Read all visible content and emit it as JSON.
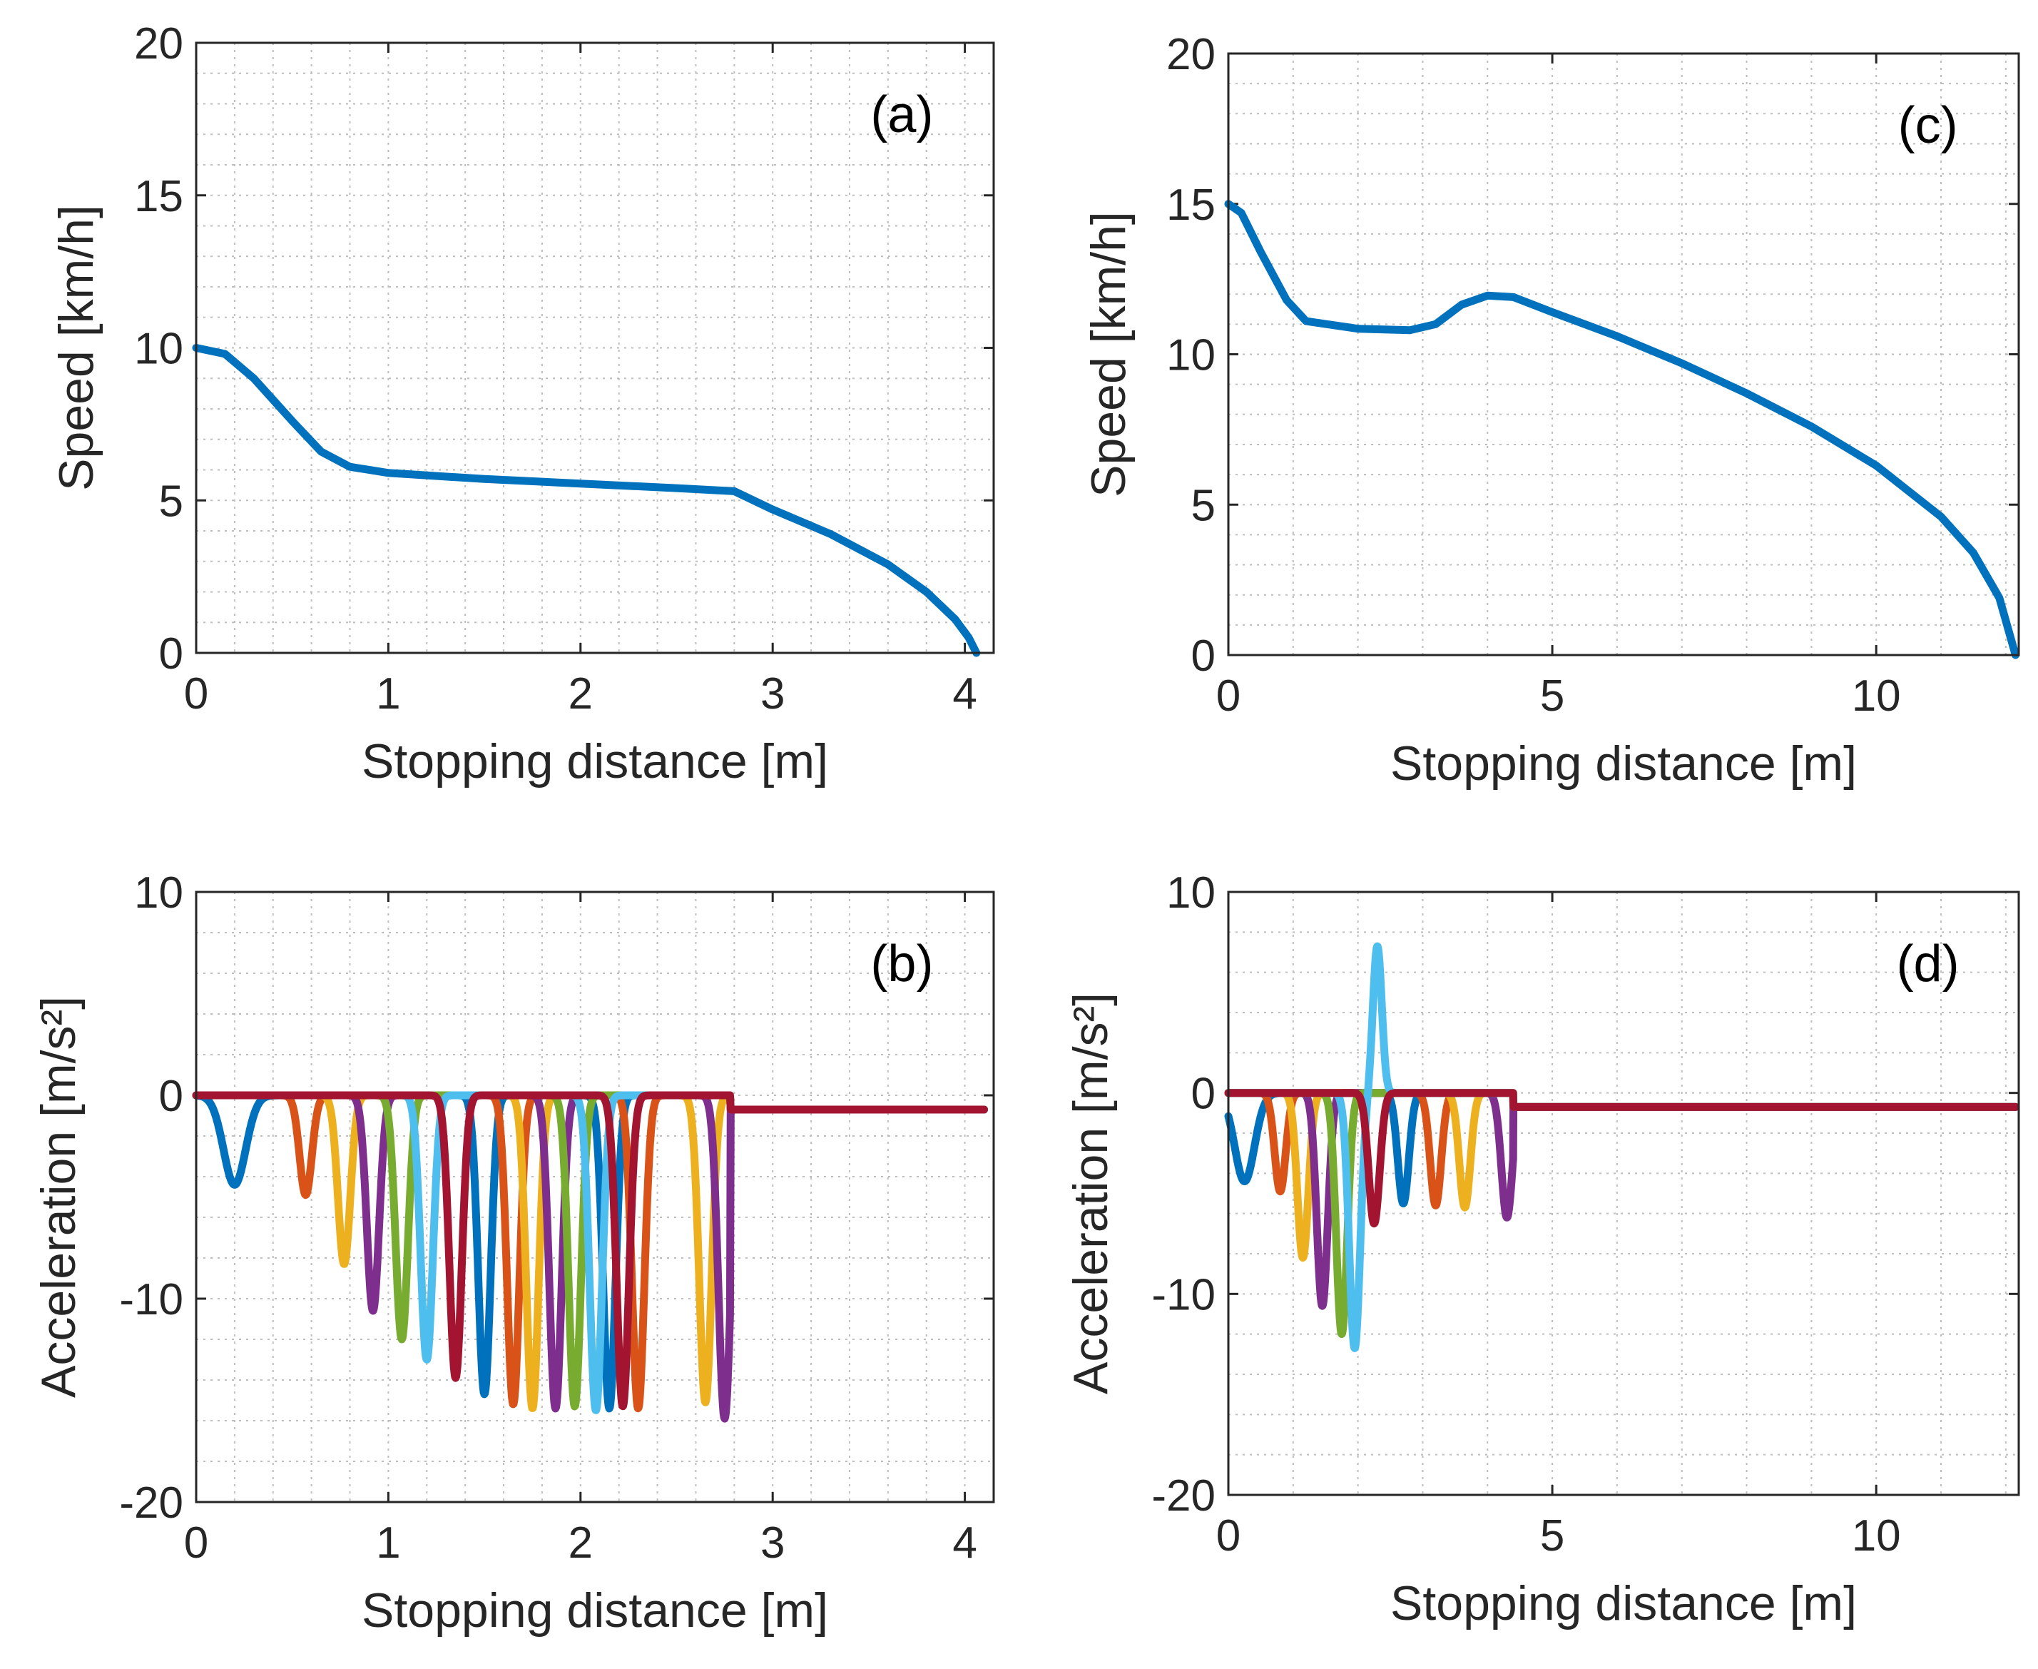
{
  "chart_data": [
    {
      "type": "line",
      "panel_label": "(a)",
      "xlabel": "Stopping distance [m]",
      "ylabel": "Speed [km/h]",
      "xlim": [
        0,
        4.15
      ],
      "ylim": [
        0,
        20
      ],
      "xticks": [
        "0",
        "1",
        "2",
        "3",
        "4"
      ],
      "yticks": [
        "0",
        "5",
        "10",
        "15",
        "20"
      ],
      "grid": "on",
      "series": [
        {
          "color": "#0072BD",
          "x": [
            0,
            0.15,
            0.3,
            0.5,
            0.65,
            0.8,
            1.0,
            1.5,
            2.0,
            2.5,
            2.8,
            3.0,
            3.3,
            3.6,
            3.8,
            3.95,
            4.02,
            4.06
          ],
          "y": [
            10.0,
            9.8,
            9.0,
            7.6,
            6.6,
            6.1,
            5.9,
            5.7,
            5.55,
            5.4,
            5.3,
            4.7,
            3.9,
            2.9,
            2.0,
            1.1,
            0.5,
            0.0
          ]
        }
      ]
    },
    {
      "type": "line",
      "panel_label": "(b)",
      "xlabel": "Stopping distance [m]",
      "ylabel": "Acceleration [m/s²]",
      "xlim": [
        0,
        4.15
      ],
      "ylim": [
        -20,
        10
      ],
      "xticks": [
        "0",
        "1",
        "2",
        "3",
        "4"
      ],
      "yticks": [
        "-20",
        "-10",
        "0",
        "10"
      ],
      "grid": "on",
      "series": [
        {
          "color": "#0072BD",
          "peaks": [
            [
              0.2,
              -4.4
            ],
            [
              1.5,
              -14.7
            ],
            [
              2.15,
              -15.4
            ]
          ]
        },
        {
          "color": "#D95319",
          "peaks": [
            [
              0.57,
              -4.9
            ],
            [
              1.65,
              -15.2
            ],
            [
              2.3,
              -15.4
            ]
          ]
        },
        {
          "color": "#EDB120",
          "peaks": [
            [
              0.77,
              -8.3
            ],
            [
              1.75,
              -15.4
            ],
            [
              2.65,
              -15.1
            ]
          ]
        },
        {
          "color": "#7E2F8E",
          "peaks": [
            [
              0.92,
              -10.6
            ],
            [
              1.87,
              -15.4
            ],
            [
              2.75,
              -15.9
            ]
          ]
        },
        {
          "color": "#77AC30",
          "peaks": [
            [
              1.07,
              -12.0
            ],
            [
              1.97,
              -15.3
            ]
          ]
        },
        {
          "color": "#4DBEEE",
          "peaks": [
            [
              1.2,
              -13.0
            ],
            [
              2.08,
              -15.5
            ]
          ]
        },
        {
          "color": "#A2142F",
          "peaks": [
            [
              1.35,
              -13.9
            ],
            [
              2.22,
              -15.3
            ]
          ]
        }
      ],
      "final_level": -0.7
    },
    {
      "type": "line",
      "panel_label": "(c)",
      "xlabel": "Stopping distance [m]",
      "ylabel": "Speed [km/h]",
      "xlim": [
        0,
        12.2
      ],
      "ylim": [
        0,
        20
      ],
      "xticks": [
        "0",
        "5",
        "10"
      ],
      "yticks": [
        "0",
        "5",
        "10",
        "15",
        "20"
      ],
      "grid": "on",
      "series": [
        {
          "color": "#0072BD",
          "x": [
            0,
            0.2,
            0.5,
            0.9,
            1.2,
            2.0,
            2.8,
            3.2,
            3.6,
            4.0,
            4.4,
            5.0,
            6.0,
            7.0,
            8.0,
            9.0,
            10.0,
            11.0,
            11.5,
            11.9,
            12.15
          ],
          "y": [
            15.0,
            14.7,
            13.4,
            11.8,
            11.1,
            10.85,
            10.8,
            11.0,
            11.65,
            11.95,
            11.9,
            11.4,
            10.6,
            9.7,
            8.7,
            7.6,
            6.3,
            4.6,
            3.4,
            1.9,
            0.0
          ]
        }
      ]
    },
    {
      "type": "line",
      "panel_label": "(d)",
      "xlabel": "Stopping distance [m]",
      "ylabel": "Acceleration [m/s²]",
      "xlim": [
        0,
        12.2
      ],
      "ylim": [
        -20,
        10
      ],
      "xticks": [
        "0",
        "5",
        "10"
      ],
      "yticks": [
        "-20",
        "-10",
        "0",
        "10"
      ],
      "grid": "on",
      "series": [
        {
          "color": "#0072BD",
          "peaks": [
            [
              0.25,
              -4.4
            ],
            [
              2.7,
              -5.5
            ]
          ]
        },
        {
          "color": "#D95319",
          "peaks": [
            [
              0.8,
              -4.9
            ],
            [
              3.2,
              -5.6
            ]
          ]
        },
        {
          "color": "#EDB120",
          "peaks": [
            [
              1.15,
              -8.2
            ],
            [
              3.65,
              -5.7
            ]
          ]
        },
        {
          "color": "#7E2F8E",
          "peaks": [
            [
              1.45,
              -10.6
            ],
            [
              4.3,
              -6.2
            ]
          ]
        },
        {
          "color": "#77AC30",
          "peaks": [
            [
              1.75,
              -12.0
            ]
          ]
        },
        {
          "color": "#4DBEEE",
          "peaks": [
            [
              1.95,
              -12.7
            ]
          ]
        },
        {
          "color": "#A2142F",
          "peaks": [
            [
              2.25,
              -6.5
            ]
          ]
        }
      ],
      "spike": {
        "x": 2.3,
        "y": 7.3
      },
      "final_level": -0.7
    }
  ]
}
